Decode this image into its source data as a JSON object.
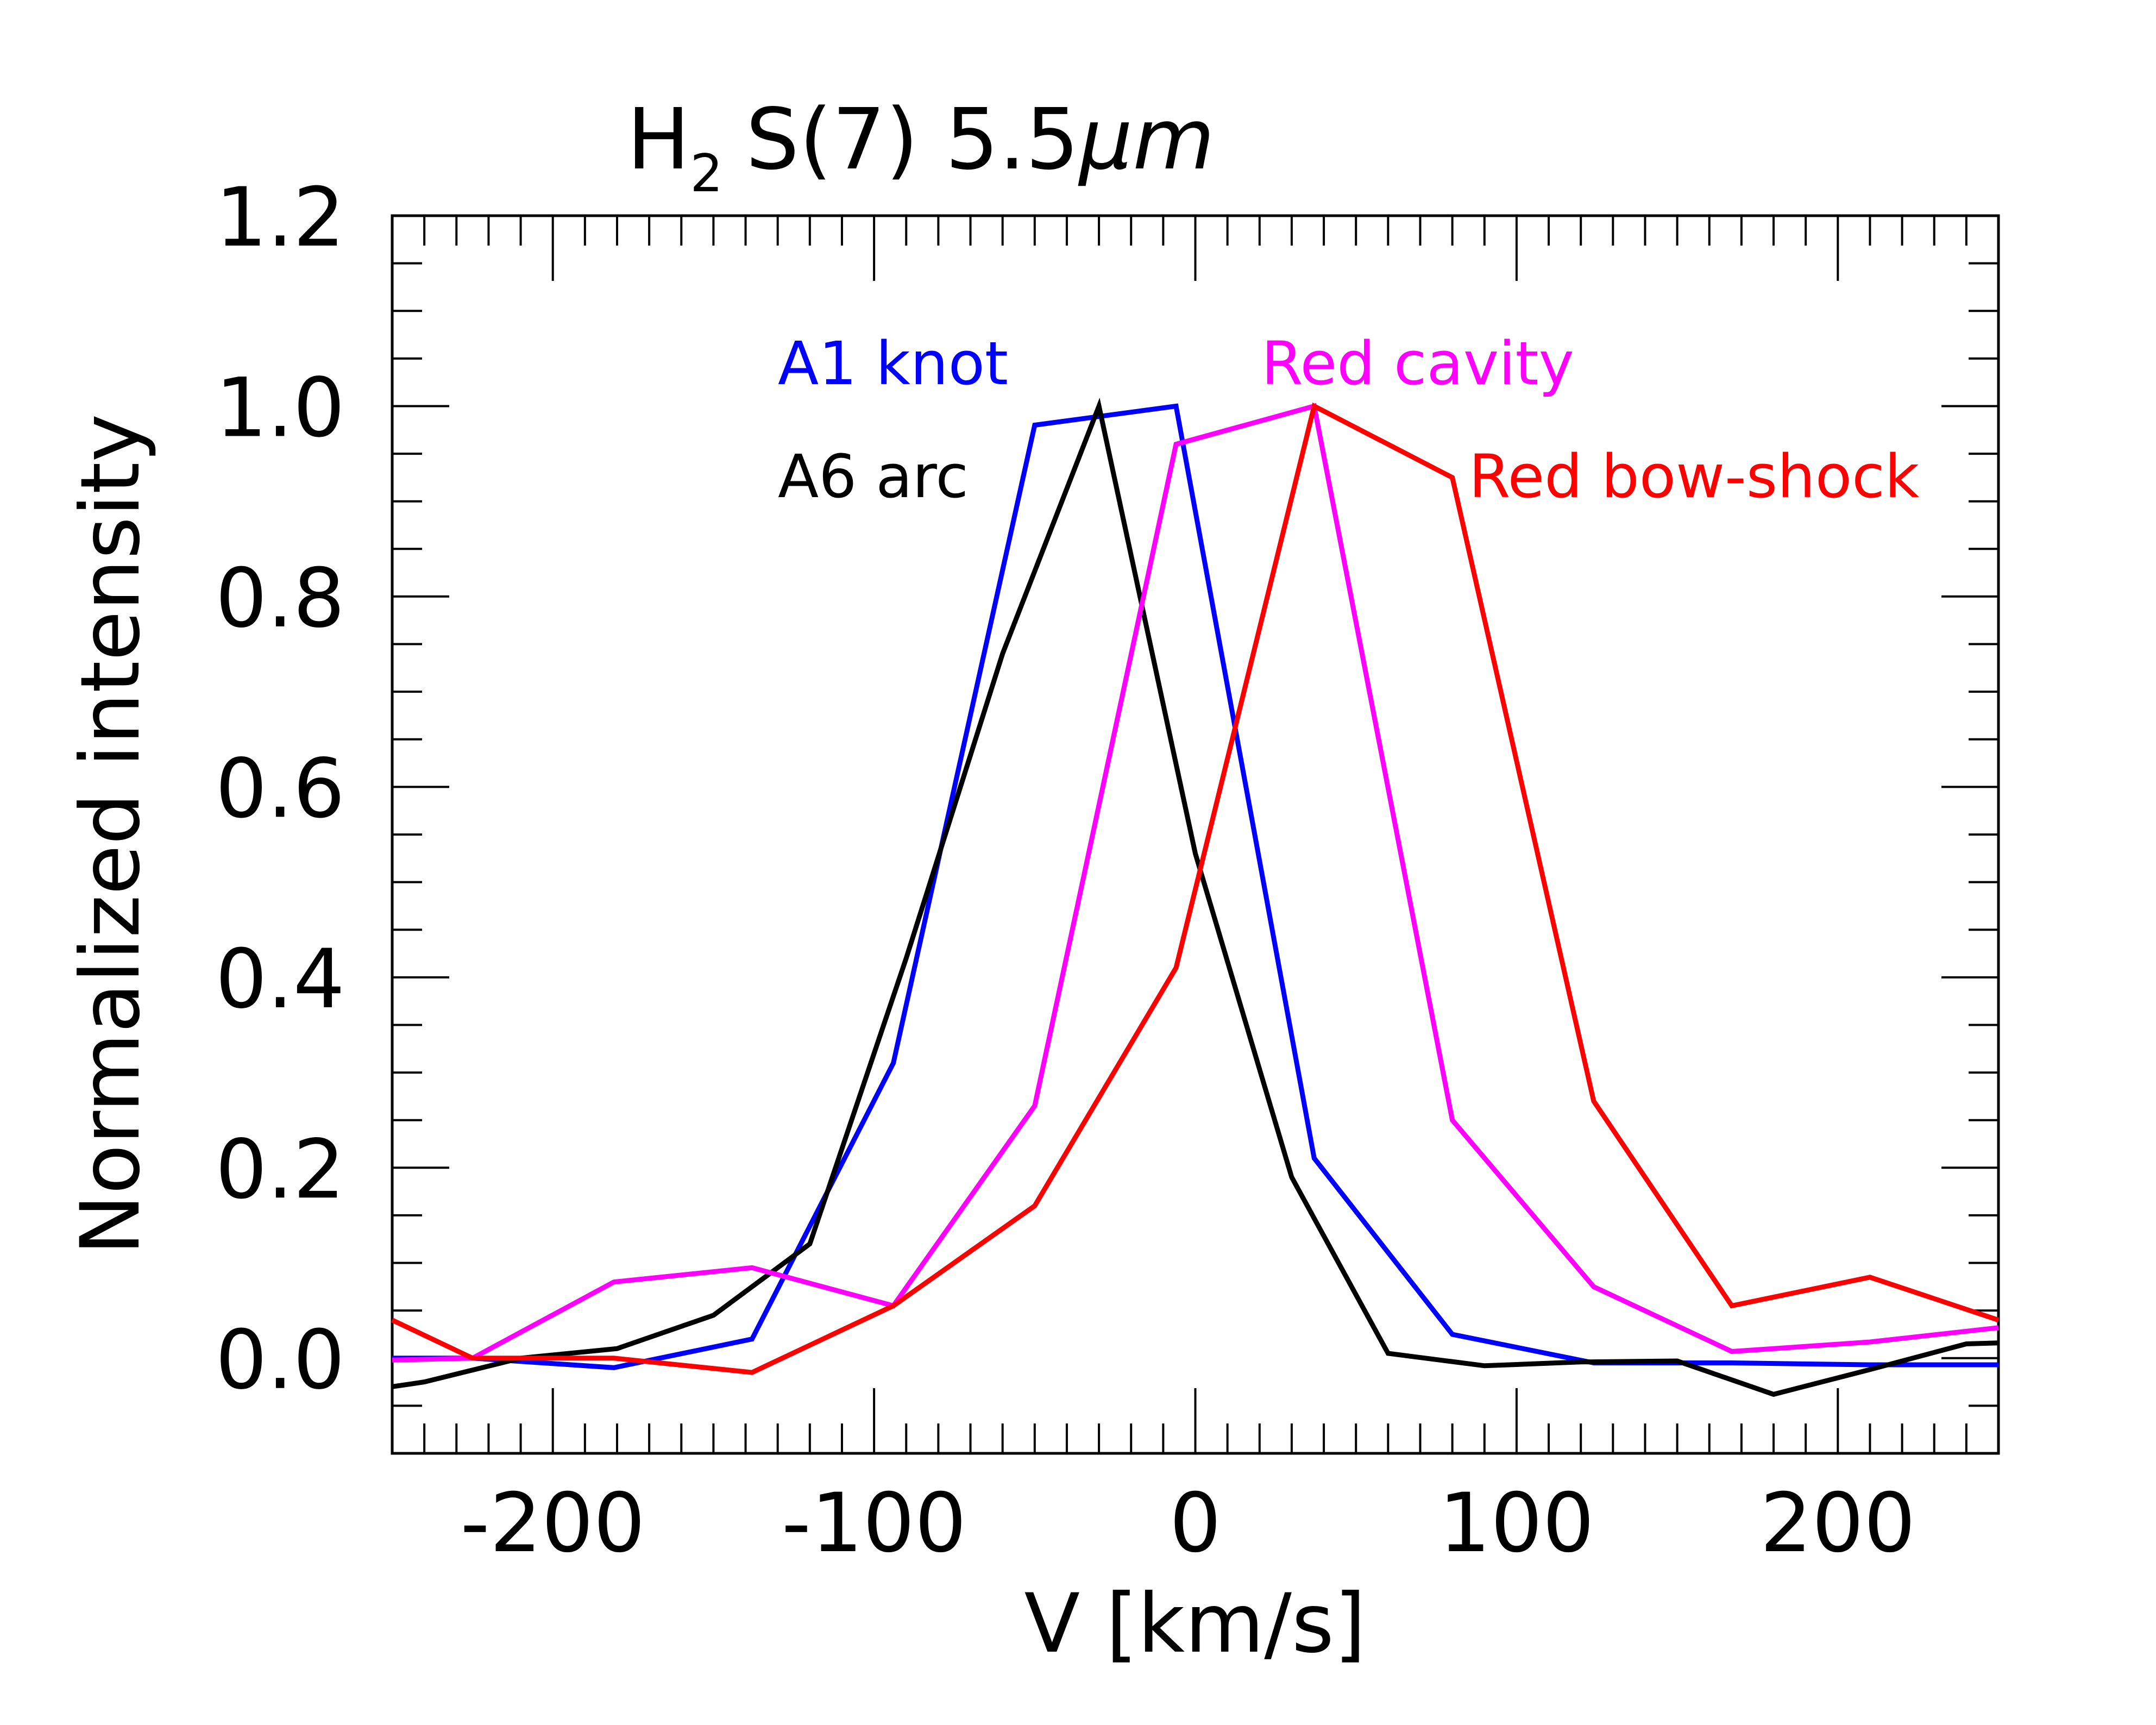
{
  "chart_data": {
    "type": "line",
    "title": {
      "species": "H",
      "subscript": "2",
      "line": "S(7) 5.5",
      "unit": "μm"
    },
    "xlabel": "V [km/s]",
    "ylabel": "Normalized intensity",
    "xlim": [
      -250,
      250
    ],
    "ylim": [
      -0.1,
      1.2
    ],
    "x_ticks": [
      {
        "value": -200,
        "label": "-200"
      },
      {
        "value": -100,
        "label": "-100"
      },
      {
        "value": 0,
        "label": "0"
      },
      {
        "value": 100,
        "label": "100"
      },
      {
        "value": 200,
        "label": "200"
      }
    ],
    "y_ticks": [
      {
        "value": 0.0,
        "label": "0.0"
      },
      {
        "value": 0.2,
        "label": "0.2"
      },
      {
        "value": 0.4,
        "label": "0.4"
      },
      {
        "value": 0.6,
        "label": "0.6"
      },
      {
        "value": 0.8,
        "label": "0.8"
      },
      {
        "value": 1.0,
        "label": "1.0"
      },
      {
        "value": 1.2,
        "label": "1.2"
      }
    ],
    "series": [
      {
        "name": "A1 knot",
        "color": "#0000ff",
        "x": [
          -250,
          -225,
          -181,
          -138,
          -94,
          -50,
          -6,
          37,
          80,
          124,
          167,
          210,
          250
        ],
        "y": [
          0.0,
          0.0,
          -0.01,
          0.02,
          0.31,
          0.98,
          1.0,
          0.21,
          0.025,
          -0.005,
          -0.005,
          -0.007,
          -0.007
        ]
      },
      {
        "name": "A6 arc",
        "color": "#000000",
        "x": [
          -250,
          -240,
          -210,
          -180,
          -150,
          -120,
          -90,
          -60,
          -30,
          0,
          30,
          60,
          90,
          120,
          150,
          180,
          210,
          240,
          250
        ],
        "y": [
          -0.03,
          -0.025,
          0.0,
          0.01,
          0.045,
          0.12,
          0.42,
          0.74,
          1.0,
          0.53,
          0.19,
          0.005,
          -0.008,
          -0.004,
          -0.003,
          -0.038,
          -0.012,
          0.015,
          0.016
        ]
      },
      {
        "name": "Red cavity",
        "color": "#ff00ff",
        "x": [
          -250,
          -225,
          -181,
          -138,
          -94,
          -50,
          -6,
          37,
          80,
          124,
          167,
          210,
          250
        ],
        "y": [
          -0.002,
          0.0,
          0.08,
          0.095,
          0.055,
          0.265,
          0.96,
          1.0,
          0.25,
          0.075,
          0.007,
          0.017,
          0.032
        ]
      },
      {
        "name": "Red bow-shock",
        "color": "#ff0000",
        "x": [
          -250,
          -225,
          -181,
          -138,
          -94,
          -50,
          -6,
          37,
          80,
          124,
          167,
          210,
          250
        ],
        "y": [
          0.04,
          0.0,
          0.0,
          -0.015,
          0.055,
          0.16,
          0.41,
          1.0,
          0.925,
          0.27,
          0.055,
          0.085,
          0.04
        ]
      }
    ],
    "legend": [
      {
        "label": "A1 knot",
        "color": "#0000ff",
        "placement": "upper-left"
      },
      {
        "label": "A6 arc",
        "color": "#000000",
        "placement": "upper-left"
      },
      {
        "label": "Red cavity",
        "color": "#ff00ff",
        "placement": "upper-right"
      },
      {
        "label": "Red bow-shock",
        "color": "#ff0000",
        "placement": "upper-right"
      }
    ]
  }
}
